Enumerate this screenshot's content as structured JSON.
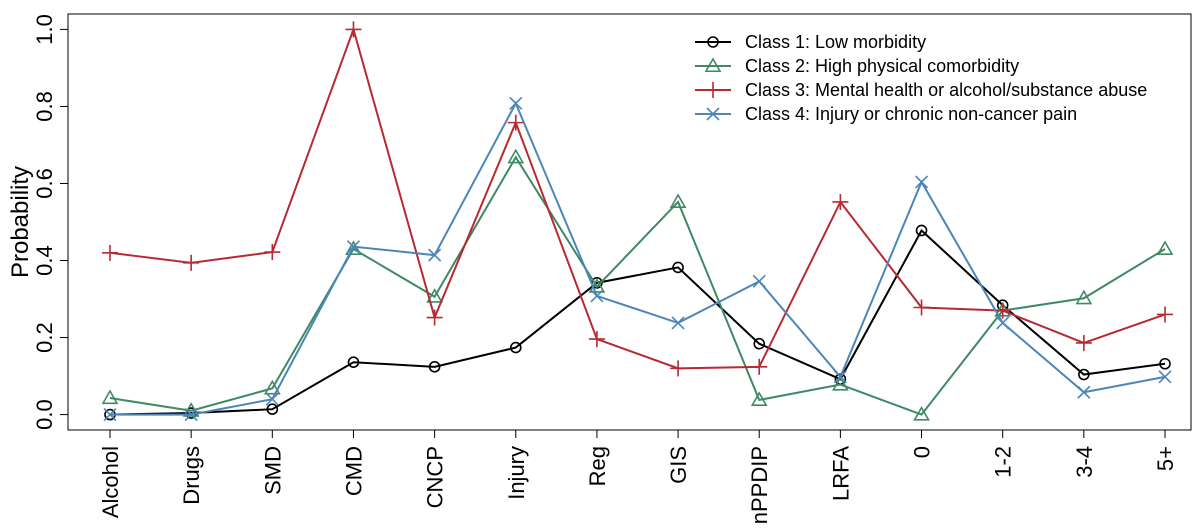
{
  "chart_data": {
    "type": "line",
    "title": "",
    "xlabel": "",
    "ylabel": "Probability",
    "categories": [
      "Alcohol",
      "Drugs",
      "SMD",
      "CMD",
      "CNCP",
      "Injury",
      "Reg",
      "GIS",
      "nPPDIP",
      "LRFA",
      "0",
      "1-2",
      "3-4",
      "5+"
    ],
    "ylim": [
      -0.04,
      1.04
    ],
    "yticks": [
      "0.0",
      "0.2",
      "0.4",
      "0.6",
      "0.8",
      "1.0"
    ],
    "grid": false,
    "legend_position": "top-right",
    "series": [
      {
        "name": "Class 1: Low morbidity",
        "color": "#000000",
        "marker": "circle",
        "values": [
          0.0,
          0.004,
          0.014,
          0.136,
          0.124,
          0.174,
          0.342,
          0.382,
          0.184,
          0.092,
          0.478,
          0.284,
          0.104,
          0.132
        ]
      },
      {
        "name": "Class 2: High physical comorbidity",
        "color": "#3f8a65",
        "marker": "triangle",
        "values": [
          0.043,
          0.01,
          0.068,
          0.43,
          0.306,
          0.668,
          0.332,
          0.552,
          0.038,
          0.078,
          0.0,
          0.27,
          0.302,
          0.43
        ]
      },
      {
        "name": "Class 3: Mental health or alcohol/substance abuse",
        "color": "#b72a33",
        "marker": "plus",
        "values": [
          0.42,
          0.394,
          0.422,
          1.0,
          0.252,
          0.758,
          0.196,
          0.12,
          0.124,
          0.552,
          0.278,
          0.27,
          0.186,
          0.26
        ]
      },
      {
        "name": "Class 4: Injury or chronic non-cancer pain",
        "color": "#4c86b8",
        "marker": "cross",
        "values": [
          0.0,
          0.0,
          0.04,
          0.436,
          0.414,
          0.808,
          0.308,
          0.238,
          0.346,
          0.098,
          0.604,
          0.238,
          0.058,
          0.098
        ]
      }
    ]
  }
}
